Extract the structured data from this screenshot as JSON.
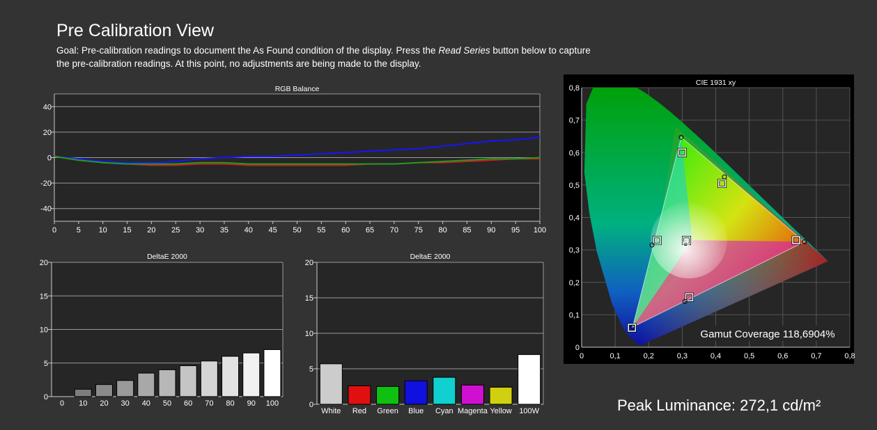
{
  "header": {
    "title": "Pre Calibration View",
    "goal_prefix": "Goal: Pre-calibration readings to document the As Found condition of the display. Press the ",
    "goal_emph": "Read Series",
    "goal_suffix": " button below to capture the pre-calibration readings. At this point, no adjustments are being made to the display."
  },
  "chart_data": [
    {
      "type": "line",
      "title": "RGB Balance",
      "x": [
        0,
        5,
        10,
        15,
        20,
        25,
        30,
        35,
        40,
        45,
        50,
        55,
        60,
        65,
        70,
        75,
        80,
        85,
        90,
        95,
        100
      ],
      "ylim": [
        -50,
        50
      ],
      "yticks": [
        -40,
        -20,
        0,
        20,
        40
      ],
      "series": [
        {
          "color": "#1515ff",
          "values": [
            1,
            -1,
            -3,
            -4,
            -4,
            -3,
            -1,
            0,
            1,
            1,
            2,
            3,
            4,
            5,
            6,
            7,
            9,
            11,
            13,
            14,
            16
          ]
        },
        {
          "color": "#c81e1e",
          "values": [
            1,
            -2,
            -4,
            -5,
            -6,
            -6,
            -5,
            -5,
            -6,
            -6,
            -6,
            -6,
            -6,
            -5,
            -5,
            -4,
            -4,
            -3,
            -2,
            -1,
            -1
          ]
        },
        {
          "color": "#1e9c1e",
          "values": [
            1,
            -2,
            -4,
            -5,
            -5,
            -5,
            -4,
            -4,
            -5,
            -5,
            -5,
            -5,
            -5,
            -5,
            -5,
            -4,
            -3,
            -2,
            -1,
            -1,
            0
          ]
        }
      ],
      "grid": true
    },
    {
      "type": "bar",
      "title": "DeltaE 2000",
      "categories": [
        "0",
        "10",
        "20",
        "30",
        "40",
        "50",
        "60",
        "70",
        "80",
        "90",
        "100"
      ],
      "values": [
        0,
        1.1,
        1.8,
        2.4,
        3.5,
        4.0,
        4.6,
        5.3,
        6.0,
        6.5,
        7.0
      ],
      "ylim": [
        0,
        20
      ],
      "yticks": [
        0,
        5,
        10,
        15,
        20
      ]
    },
    {
      "type": "bar",
      "title": "DeltaE 2000",
      "categories": [
        "White",
        "Red",
        "Green",
        "Blue",
        "Cyan",
        "Magenta",
        "Yellow",
        "100W"
      ],
      "values": [
        5.7,
        2.6,
        2.5,
        3.3,
        3.8,
        2.7,
        2.4,
        7.0
      ],
      "colors": [
        "#cccccc",
        "#e01010",
        "#10c010",
        "#1010e0",
        "#10d0d0",
        "#d010d0",
        "#d0d010",
        "#ffffff"
      ],
      "ylim": [
        0,
        20
      ],
      "yticks": [
        0,
        5,
        10,
        15,
        20
      ]
    },
    {
      "type": "scatter",
      "title": "CIE 1931 xy",
      "xlim": [
        0,
        0.8
      ],
      "ylim": [
        0,
        0.8
      ],
      "ticks": [
        "0",
        "0,1",
        "0,2",
        "0,3",
        "0,4",
        "0,5",
        "0,6",
        "0,7",
        "0,8"
      ],
      "targets": [
        [
          0.64,
          0.33
        ],
        [
          0.3,
          0.6
        ],
        [
          0.15,
          0.06
        ],
        [
          0.3127,
          0.329
        ],
        [
          0.225,
          0.329
        ],
        [
          0.321,
          0.154
        ],
        [
          0.419,
          0.505
        ]
      ],
      "measured": [
        [
          0.665,
          0.325
        ],
        [
          0.297,
          0.647
        ],
        [
          0.152,
          0.062
        ],
        [
          0.31,
          0.32
        ],
        [
          0.21,
          0.315
        ],
        [
          0.308,
          0.141
        ],
        [
          0.426,
          0.525
        ]
      ],
      "gamut_label": "Gamut Coverage 118,6904%"
    }
  ],
  "footer": {
    "peak_luminance": "Peak Luminance: 272,1 cd/m²"
  }
}
